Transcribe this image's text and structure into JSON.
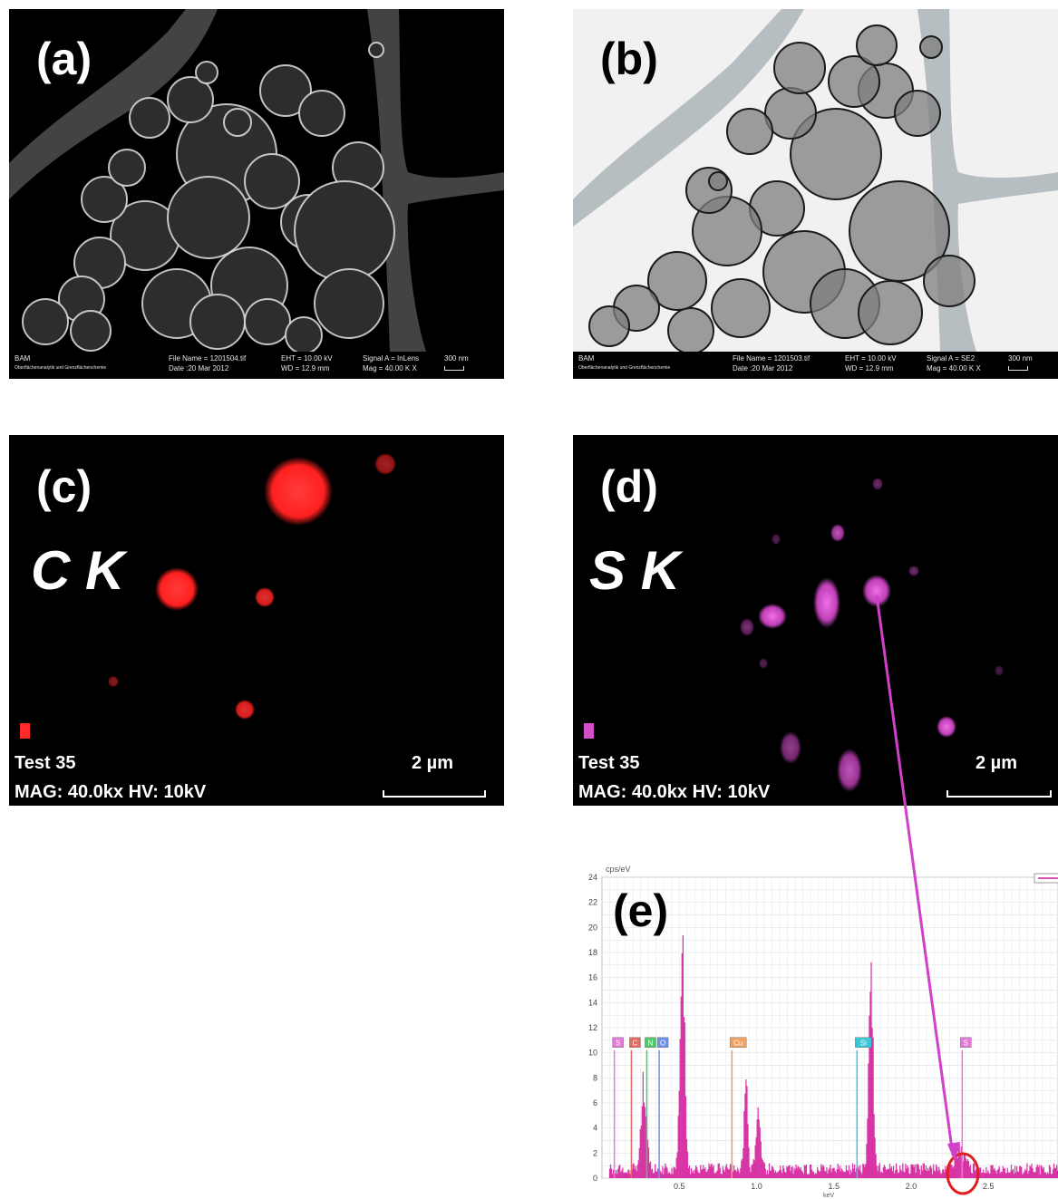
{
  "panels": {
    "a": {
      "label": "(a)",
      "footer": {
        "org": "BAM",
        "dept": "Oberflächenanalytik und Grenzflächenchemie",
        "file_name": "File Name = 1201504.tif",
        "date": "Date :20 Mar 2012",
        "eht": "EHT = 10.00 kV",
        "wd": "WD = 12.9 mm",
        "signal": "Signal A = InLens",
        "mag": "Mag =  40.00 K X",
        "scale": "300 nm"
      }
    },
    "b": {
      "label": "(b)",
      "footer": {
        "org": "BAM",
        "dept": "Oberflächenanalytik und Grenzflächenchemie",
        "file_name": "File Name = 1201503.tif",
        "date": "Date :20 Mar 2012",
        "eht": "EHT = 10.00 kV",
        "wd": "WD = 12.9 mm",
        "signal": "Signal A = SE2",
        "mag": "Mag =  40.00 K X",
        "scale": "300 nm"
      }
    },
    "c": {
      "label": "(c)",
      "element": "C K",
      "sample": "Test 35",
      "mag_hv": "MAG: 40.0kx HV: 10kV",
      "scale": "2 µm",
      "color": "#ff2a2a"
    },
    "d": {
      "label": "(d)",
      "element": "S K",
      "sample": "Test 35",
      "mag_hv": "MAG: 40.0kx HV: 10kV",
      "scale": "2 µm",
      "color": "#e04bd6"
    },
    "e": {
      "label": "(e)",
      "y_unit": "cps/eV",
      "x_unit": "keV",
      "spectrum_color": "#d41a9a",
      "y_ticks": [
        "0",
        "2",
        "4",
        "6",
        "8",
        "10",
        "12",
        "14",
        "16",
        "18",
        "20",
        "22",
        "24"
      ],
      "x_ticks": [
        "0.5",
        "1.0",
        "1.5",
        "2.0",
        "2.5"
      ],
      "peak_tags": [
        {
          "text": "S",
          "color": "#e17ad6"
        },
        {
          "text": "C",
          "color": "#e86a5a"
        },
        {
          "text": "N",
          "color": "#4fc66a"
        },
        {
          "text": "O",
          "color": "#6f8fe6"
        },
        {
          "text": "Cu",
          "color": "#f0a060"
        },
        {
          "text": "Si",
          "color": "#39c6d6"
        },
        {
          "text": "S",
          "color": "#e17ad6"
        }
      ]
    }
  }
}
